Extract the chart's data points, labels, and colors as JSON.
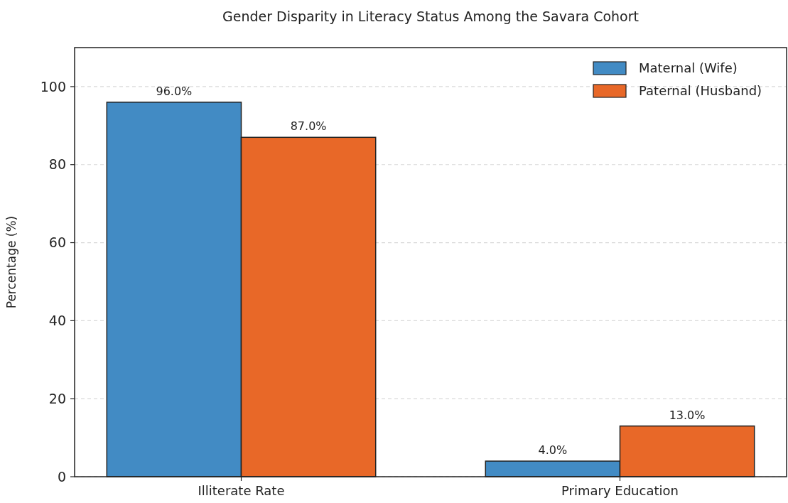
{
  "chart_data": {
    "type": "bar",
    "title": "Gender Disparity in Literacy Status Among the Savara Cohort",
    "ylabel": "Percentage (%)",
    "categories": [
      "Illiterate Rate",
      "Primary Education"
    ],
    "series": [
      {
        "name": "Maternal (Wife)",
        "color": "#428bc4",
        "values": [
          96,
          4
        ],
        "value_labels": [
          "96.0%",
          "4.0%"
        ]
      },
      {
        "name": "Paternal (Husband)",
        "color": "#e86828",
        "values": [
          87,
          13
        ],
        "value_labels": [
          "87.0%",
          "13.0%"
        ]
      }
    ],
    "ylim": [
      0,
      110
    ],
    "yticks": [
      0,
      20,
      40,
      60,
      80,
      100
    ],
    "grid": "y",
    "legend": "top right"
  }
}
